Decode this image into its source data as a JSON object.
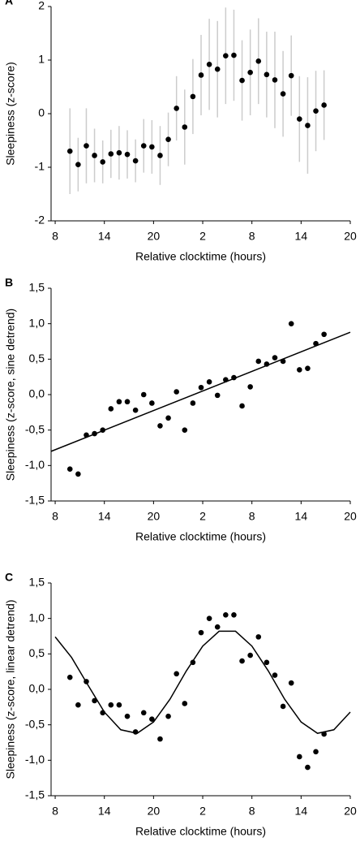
{
  "chart_data": [
    {
      "type": "scatter",
      "label": "A",
      "xlabel": "Relative clocktime (hours)",
      "ylabel": "Sleepiness (z-score)",
      "x": [
        9.8,
        10.8,
        11.8,
        12.8,
        13.8,
        14.8,
        15.8,
        16.8,
        17.8,
        18.8,
        19.8,
        20.8,
        21.8,
        22.8,
        23.8,
        24.8,
        25.8,
        26.8,
        27.8,
        28.8,
        29.8,
        30.8,
        31.8,
        32.8,
        33.8,
        34.8,
        35.8,
        36.8,
        37.8,
        38.8,
        39.8,
        40.8
      ],
      "values": [
        -0.7,
        -0.95,
        -0.6,
        -0.78,
        -0.9,
        -0.75,
        -0.73,
        -0.76,
        -0.88,
        -0.6,
        -0.62,
        -0.78,
        -0.48,
        0.1,
        -0.25,
        0.32,
        0.72,
        0.92,
        0.83,
        1.08,
        1.09,
        0.62,
        0.77,
        0.98,
        0.73,
        0.63,
        0.37,
        0.71,
        -0.1,
        -0.22,
        0.05,
        0.16
      ],
      "errors": [
        0.8,
        0.5,
        0.7,
        0.5,
        0.4,
        0.45,
        0.5,
        0.45,
        0.4,
        0.5,
        0.5,
        0.55,
        0.5,
        0.6,
        0.7,
        0.7,
        0.75,
        0.85,
        0.9,
        0.9,
        0.85,
        0.75,
        0.8,
        0.8,
        0.8,
        0.9,
        0.8,
        0.75,
        0.8,
        0.9,
        0.75,
        0.65
      ],
      "color": "#000000",
      "error_color": "#cccccc",
      "xlim": [
        7.5,
        44
      ],
      "ylim": [
        -2,
        2
      ],
      "xticks": [
        8,
        14,
        20,
        {
          "value": 26,
          "label": "2"
        },
        {
          "value": 32,
          "label": "8"
        },
        {
          "value": 38,
          "label": "14"
        },
        {
          "value": 44,
          "label": "20"
        }
      ],
      "yticks": [
        -2,
        -1,
        0,
        1,
        2
      ]
    },
    {
      "type": "scatter",
      "label": "B",
      "xlabel": "Relative clocktime (hours)",
      "ylabel": "Sleepiness (z-score, sine detrend)",
      "x": [
        9.8,
        10.8,
        11.8,
        12.8,
        13.8,
        14.8,
        15.8,
        16.8,
        17.8,
        18.8,
        19.8,
        20.8,
        21.8,
        22.8,
        23.8,
        24.8,
        25.8,
        26.8,
        27.8,
        28.8,
        29.8,
        30.8,
        31.8,
        32.8,
        33.8,
        34.8,
        35.8,
        36.8,
        37.8,
        38.8,
        39.8,
        40.8
      ],
      "values": [
        -1.05,
        -1.12,
        -0.57,
        -0.55,
        -0.5,
        -0.2,
        -0.1,
        -0.1,
        -0.22,
        0.0,
        -0.12,
        -0.44,
        -0.33,
        0.04,
        -0.5,
        -0.12,
        0.1,
        0.18,
        -0.01,
        0.21,
        0.24,
        -0.16,
        0.11,
        0.47,
        0.43,
        0.52,
        0.47,
        1.0,
        0.35,
        0.37,
        0.72,
        0.85
      ],
      "color": "#000000",
      "fit": {
        "x": [
          7.5,
          44
        ],
        "values": [
          -0.8,
          0.88
        ]
      },
      "xlim": [
        7.5,
        44
      ],
      "ylim": [
        -1.5,
        1.5
      ],
      "xticks": [
        8,
        14,
        20,
        {
          "value": 26,
          "label": "2"
        },
        {
          "value": 32,
          "label": "8"
        },
        {
          "value": 38,
          "label": "14"
        },
        {
          "value": 44,
          "label": "20"
        }
      ],
      "yticks": [
        {
          "value": -1.5,
          "label": "-1,5"
        },
        {
          "value": -1.0,
          "label": "-1,0"
        },
        {
          "value": -0.5,
          "label": "-0,5"
        },
        {
          "value": 0,
          "label": "0,0"
        },
        {
          "value": 0.5,
          "label": "0,5"
        },
        {
          "value": 1.0,
          "label": "1,0"
        },
        {
          "value": 1.5,
          "label": "1,5"
        }
      ]
    },
    {
      "type": "scatter",
      "label": "C",
      "xlabel": "Relative clocktime (hours)",
      "ylabel": "Sleepiness (z-score, linear detrend)",
      "x": [
        9.8,
        10.8,
        11.8,
        12.8,
        13.8,
        14.8,
        15.8,
        16.8,
        17.8,
        18.8,
        19.8,
        20.8,
        21.8,
        22.8,
        23.8,
        24.8,
        25.8,
        26.8,
        27.8,
        28.8,
        29.8,
        30.8,
        31.8,
        32.8,
        33.8,
        34.8,
        35.8,
        36.8,
        37.8,
        38.8,
        39.8,
        40.8
      ],
      "values": [
        0.17,
        -0.22,
        0.11,
        -0.16,
        -0.33,
        -0.22,
        -0.22,
        -0.38,
        -0.6,
        -0.33,
        -0.42,
        -0.7,
        -0.38,
        0.22,
        -0.2,
        0.38,
        0.8,
        1.0,
        0.88,
        1.05,
        1.05,
        0.4,
        0.48,
        0.74,
        0.38,
        0.2,
        -0.24,
        0.09,
        -0.95,
        -1.1,
        -0.88,
        -0.63
      ],
      "color": "#000000",
      "fit": {
        "x": [
          8,
          10,
          12,
          14,
          16,
          18,
          20,
          22,
          24,
          26,
          28,
          30,
          32,
          34,
          36,
          38,
          40,
          42,
          44
        ],
        "values": [
          0.74,
          0.45,
          0.06,
          -0.32,
          -0.57,
          -0.62,
          -0.46,
          -0.14,
          0.26,
          0.61,
          0.82,
          0.82,
          0.61,
          0.26,
          -0.14,
          -0.46,
          -0.62,
          -0.57,
          -0.32
        ]
      },
      "xlim": [
        7.5,
        44
      ],
      "ylim": [
        -1.5,
        1.5
      ],
      "xticks": [
        8,
        14,
        20,
        {
          "value": 26,
          "label": "2"
        },
        {
          "value": 32,
          "label": "8"
        },
        {
          "value": 38,
          "label": "14"
        },
        {
          "value": 44,
          "label": "20"
        }
      ],
      "yticks": [
        {
          "value": -1.5,
          "label": "-1,5"
        },
        {
          "value": -1.0,
          "label": "-1,0"
        },
        {
          "value": -0.5,
          "label": "-0,5"
        },
        {
          "value": 0,
          "label": "0,0"
        },
        {
          "value": 0.5,
          "label": "0,5"
        },
        {
          "value": 1.0,
          "label": "1,0"
        },
        {
          "value": 1.5,
          "label": "1,5"
        }
      ]
    }
  ]
}
